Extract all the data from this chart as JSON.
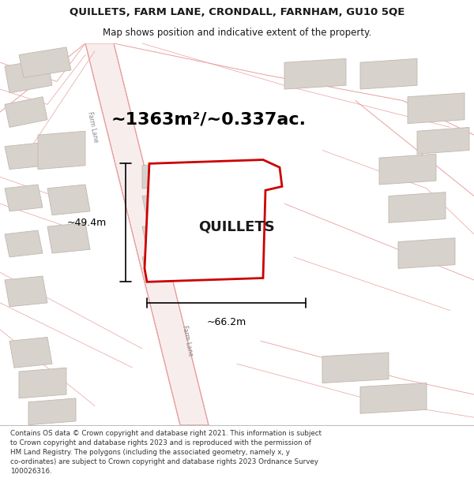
{
  "title_line1": "QUILLETS, FARM LANE, CRONDALL, FARNHAM, GU10 5QE",
  "title_line2": "Map shows position and indicative extent of the property.",
  "footer_lines": [
    "Contains OS data © Crown copyright and database right 2021. This information is subject",
    "to Crown copyright and database rights 2023 and is reproduced with the permission of",
    "HM Land Registry. The polygons (including the associated geometry, namely x, y",
    "co-ordinates) are subject to Crown copyright and database rights 2023 Ordnance Survey",
    "100026316."
  ],
  "property_label": "QUILLETS",
  "area_label": "~1363m²/~0.337ac.",
  "dim_width": "~66.2m",
  "dim_height": "~49.4m",
  "map_bg": "#ffffff",
  "road_line_color": "#e8a0a0",
  "road_fill_color": "#f8eded",
  "building_fill": "#d8d2cc",
  "building_stroke": "#c0b8b0",
  "prop_fill": "#ffffff",
  "prop_stroke": "#cc0000",
  "text_color": "#1a1a1a",
  "footer_color": "#333333",
  "farm_lane_label_color": "#888888",
  "title_fontsize": 9.5,
  "subtitle_fontsize": 8.5,
  "area_fontsize": 16,
  "label_fontsize": 13,
  "dim_fontsize": 9,
  "footer_fontsize": 6.3
}
